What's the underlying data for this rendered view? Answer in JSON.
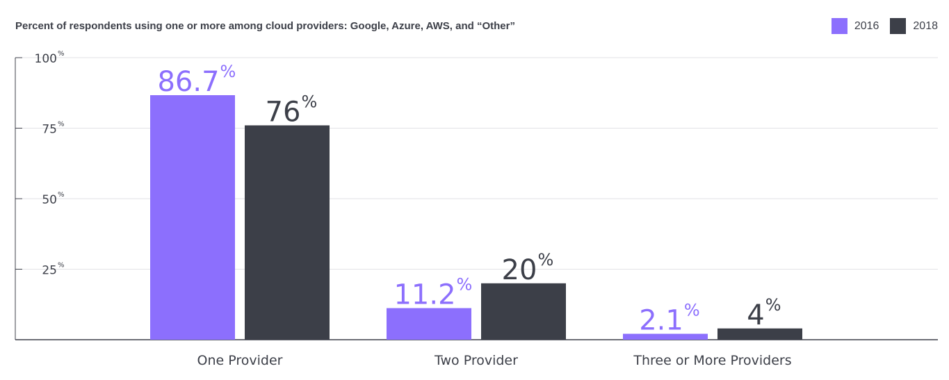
{
  "title": "Percent of respondents using one or more among cloud providers: Google, Azure, AWS, and “Other”",
  "chart_data": {
    "type": "bar",
    "title": "Percent of respondents using one or more among cloud providers: Google, Azure, AWS, and “Other”",
    "xlabel": "",
    "ylabel": "",
    "ylim": [
      0,
      100
    ],
    "yticks": [
      "25",
      "50",
      "75",
      "100"
    ],
    "ytick_suffix": "%",
    "grid": true,
    "legend_position": "top-right",
    "categories": [
      "One Provider",
      "Two Provider",
      "Three or More Providers"
    ],
    "series": [
      {
        "name": "2016",
        "color": "#8c6ffd",
        "values": [
          86.7,
          11.2,
          2.1
        ],
        "labels": [
          "86.7",
          "11.2",
          "2.1"
        ]
      },
      {
        "name": "2018",
        "color": "#3c3f48",
        "values": [
          76,
          20,
          4
        ],
        "labels": [
          "76",
          "20",
          "4"
        ]
      }
    ]
  }
}
